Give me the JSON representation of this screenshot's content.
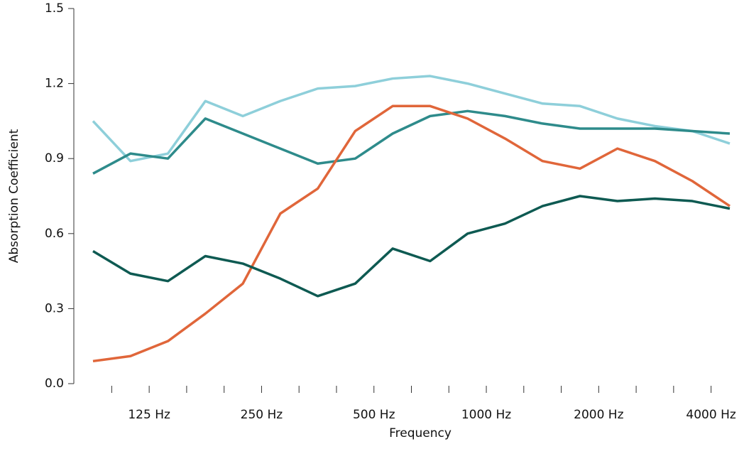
{
  "chart_data": {
    "type": "line",
    "x_label": "Frequency",
    "y_label": "Absorption Coefficient",
    "categories": [
      null,
      "125 Hz",
      null,
      null,
      "250 Hz",
      null,
      null,
      "500 Hz",
      null,
      null,
      "1000 Hz",
      null,
      null,
      "2000 Hz",
      null,
      null,
      "4000 Hz",
      null
    ],
    "series": [
      {
        "color": "#8ecfda",
        "values": [
          1.05,
          0.89,
          0.92,
          1.13,
          1.07,
          1.13,
          1.18,
          1.19,
          1.22,
          1.23,
          1.2,
          1.16,
          1.12,
          1.11,
          1.06,
          1.03,
          1.01,
          0.96
        ]
      },
      {
        "color": "#2e8b8b",
        "values": [
          0.84,
          0.92,
          0.9,
          1.06,
          1.0,
          0.94,
          0.88,
          0.9,
          1.0,
          1.07,
          1.09,
          1.07,
          1.04,
          1.02,
          1.02,
          1.02,
          1.01,
          1.0
        ]
      },
      {
        "color": "#e0663a",
        "values": [
          0.09,
          0.11,
          0.17,
          0.28,
          0.4,
          0.68,
          0.78,
          1.01,
          1.11,
          1.11,
          1.06,
          0.98,
          0.89,
          0.86,
          0.94,
          0.89,
          0.81,
          0.71
        ]
      },
      {
        "color": "#0e5a52",
        "values": [
          0.53,
          0.44,
          0.41,
          0.51,
          0.48,
          0.42,
          0.35,
          0.4,
          0.54,
          0.49,
          0.6,
          0.64,
          0.71,
          0.75,
          0.73,
          0.74,
          0.73,
          0.7
        ]
      }
    ],
    "ylim": [
      0,
      1.5
    ],
    "yticks": [
      {
        "value": 0,
        "label": "0.0"
      },
      0.3,
      0.6,
      0.9,
      1.2,
      1.5
    ]
  }
}
